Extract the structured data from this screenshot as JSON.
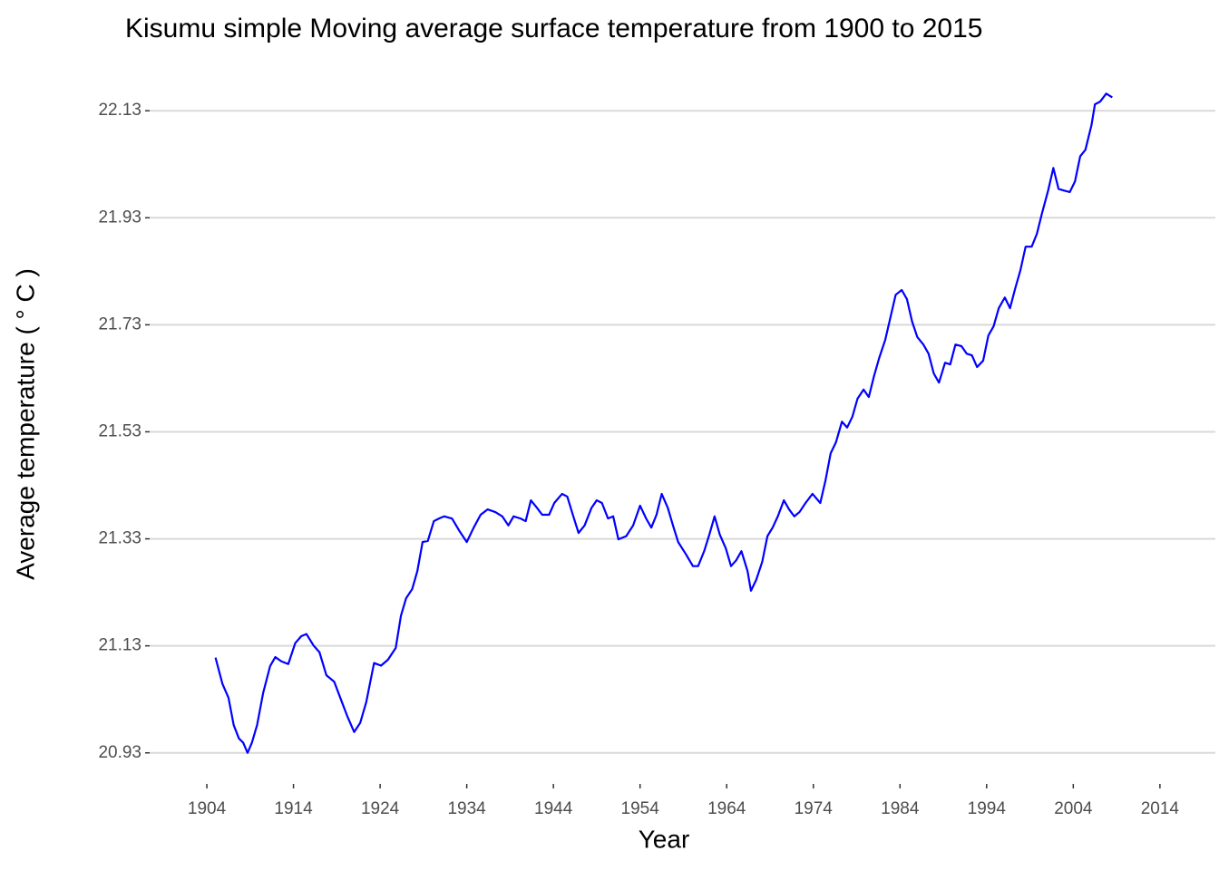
{
  "chart_data": {
    "type": "line",
    "title": "Kisumu simple Moving average surface temperature from 1900 to 2015",
    "x_label": "Year",
    "y_label": "Average temperature ( ° C )",
    "x": [
      1905.0,
      1905.8,
      1906.5,
      1907.1,
      1907.7,
      1908.2,
      1908.7,
      1909.2,
      1909.8,
      1910.5,
      1911.3,
      1911.9,
      1912.6,
      1913.4,
      1914.2,
      1914.9,
      1915.5,
      1916.3,
      1917.0,
      1917.8,
      1918.7,
      1919.4,
      1920.2,
      1921.0,
      1921.7,
      1922.4,
      1923.3,
      1924.1,
      1924.9,
      1925.8,
      1926.4,
      1927.0,
      1927.7,
      1928.3,
      1928.9,
      1929.5,
      1930.2,
      1930.8,
      1931.4,
      1932.3,
      1933.1,
      1934.0,
      1934.8,
      1935.6,
      1936.4,
      1937.3,
      1938.1,
      1938.8,
      1939.4,
      1940.2,
      1940.8,
      1941.4,
      1942.1,
      1942.7,
      1943.5,
      1944.1,
      1945.0,
      1945.6,
      1946.3,
      1946.9,
      1947.6,
      1948.4,
      1949.0,
      1949.6,
      1950.3,
      1950.9,
      1951.5,
      1952.4,
      1953.2,
      1954.0,
      1954.7,
      1955.3,
      1955.9,
      1956.5,
      1957.2,
      1957.8,
      1958.4,
      1959.3,
      1960.1,
      1960.7,
      1961.4,
      1962.0,
      1962.6,
      1963.2,
      1963.9,
      1964.5,
      1965.1,
      1965.7,
      1966.4,
      1966.8,
      1967.4,
      1968.1,
      1968.7,
      1969.3,
      1969.9,
      1970.6,
      1971.2,
      1971.8,
      1972.4,
      1973.1,
      1973.9,
      1974.8,
      1975.4,
      1976.0,
      1976.6,
      1977.3,
      1977.9,
      1978.5,
      1979.1,
      1979.8,
      1980.4,
      1981.0,
      1981.6,
      1982.3,
      1982.9,
      1983.5,
      1984.2,
      1984.8,
      1985.4,
      1986.0,
      1986.7,
      1987.3,
      1987.9,
      1988.5,
      1989.2,
      1989.8,
      1990.4,
      1991.1,
      1991.7,
      1992.3,
      1992.9,
      1993.6,
      1994.2,
      1994.8,
      1995.4,
      1996.1,
      1996.7,
      1997.3,
      1997.9,
      1998.5,
      1999.2,
      1999.8,
      2000.4,
      2001.1,
      2001.7,
      2002.3,
      2002.9,
      2003.6,
      2004.2,
      2004.8,
      2005.4,
      2006.1,
      2006.5,
      2007.1,
      2007.8,
      2008.5
    ],
    "series": [
      {
        "name": "Moving average",
        "color": "#0000ff",
        "values": [
          21.108,
          21.059,
          21.033,
          20.982,
          20.957,
          20.949,
          20.93,
          20.949,
          20.982,
          21.042,
          21.092,
          21.109,
          21.101,
          21.096,
          21.135,
          21.148,
          21.152,
          21.131,
          21.118,
          21.075,
          21.063,
          21.033,
          20.999,
          20.969,
          20.986,
          21.025,
          21.098,
          21.093,
          21.104,
          21.126,
          21.186,
          21.219,
          21.236,
          21.27,
          21.324,
          21.326,
          21.363,
          21.368,
          21.372,
          21.368,
          21.346,
          21.324,
          21.351,
          21.375,
          21.385,
          21.38,
          21.372,
          21.355,
          21.372,
          21.368,
          21.363,
          21.402,
          21.388,
          21.375,
          21.375,
          21.397,
          21.414,
          21.409,
          21.372,
          21.341,
          21.355,
          21.388,
          21.402,
          21.397,
          21.368,
          21.372,
          21.329,
          21.335,
          21.355,
          21.392,
          21.368,
          21.351,
          21.375,
          21.414,
          21.388,
          21.355,
          21.324,
          21.301,
          21.279,
          21.279,
          21.307,
          21.338,
          21.372,
          21.338,
          21.312,
          21.279,
          21.29,
          21.307,
          21.27,
          21.233,
          21.253,
          21.287,
          21.335,
          21.351,
          21.372,
          21.402,
          21.385,
          21.372,
          21.38,
          21.397,
          21.414,
          21.397,
          21.439,
          21.49,
          21.51,
          21.549,
          21.538,
          21.558,
          21.592,
          21.609,
          21.595,
          21.634,
          21.668,
          21.702,
          21.744,
          21.786,
          21.795,
          21.778,
          21.736,
          21.707,
          21.693,
          21.676,
          21.639,
          21.622,
          21.659,
          21.656,
          21.693,
          21.69,
          21.676,
          21.673,
          21.651,
          21.663,
          21.71,
          21.727,
          21.761,
          21.781,
          21.761,
          21.798,
          21.832,
          21.876,
          21.876,
          21.9,
          21.939,
          21.981,
          22.023,
          21.984,
          21.981,
          21.978,
          21.998,
          22.045,
          22.057,
          22.103,
          22.142,
          22.147,
          22.162,
          22.155
        ]
      }
    ],
    "xlim": [
      1897.4,
      2020.4
    ],
    "ylim": [
      20.872,
      22.193
    ],
    "xticks": [
      1904,
      1914,
      1924,
      1934,
      1944,
      1954,
      1964,
      1974,
      1984,
      1994,
      2004,
      2014
    ],
    "yticks": [
      20.93,
      21.13,
      21.33,
      21.53,
      21.73,
      21.93,
      22.13
    ],
    "grid": true
  }
}
